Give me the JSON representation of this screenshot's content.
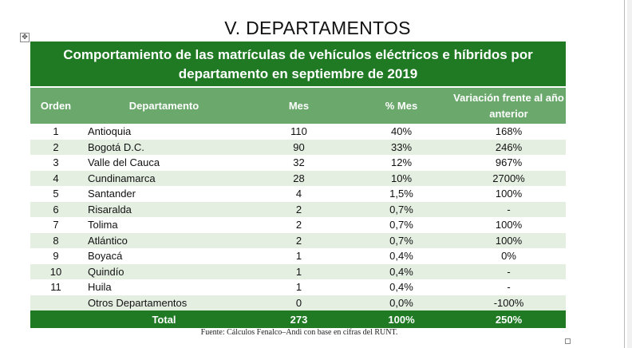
{
  "section_title": "V. DEPARTAMENTOS",
  "table": {
    "title": "Comportamiento  de las matrículas  de vehículos eléctricos e híbridos por departamento  en septiembre de 2019",
    "headers": {
      "orden": "Orden",
      "departamento": "Departamento",
      "mes": "Mes",
      "pct_mes": "% Mes",
      "variacion": "Variación frente al año anterior"
    },
    "rows": [
      {
        "orden": "1",
        "departamento": "Antioquia",
        "mes": "110",
        "pct_mes": "40%",
        "variacion": "168%"
      },
      {
        "orden": "2",
        "departamento": "Bogotá D.C.",
        "mes": "90",
        "pct_mes": "33%",
        "variacion": "246%"
      },
      {
        "orden": "3",
        "departamento": "Valle del Cauca",
        "mes": "32",
        "pct_mes": "12%",
        "variacion": "967%"
      },
      {
        "orden": "4",
        "departamento": "Cundinamarca",
        "mes": "28",
        "pct_mes": "10%",
        "variacion": "2700%"
      },
      {
        "orden": "5",
        "departamento": "Santander",
        "mes": "4",
        "pct_mes": "1,5%",
        "variacion": "100%"
      },
      {
        "orden": "6",
        "departamento": "Risaralda",
        "mes": "2",
        "pct_mes": "0,7%",
        "variacion": "-"
      },
      {
        "orden": "7",
        "departamento": "Tolima",
        "mes": "2",
        "pct_mes": "0,7%",
        "variacion": "100%"
      },
      {
        "orden": "8",
        "departamento": "Atlántico",
        "mes": "2",
        "pct_mes": "0,7%",
        "variacion": "100%"
      },
      {
        "orden": "9",
        "departamento": "Boyacá",
        "mes": "1",
        "pct_mes": "0,4%",
        "variacion": "0%"
      },
      {
        "orden": "10",
        "departamento": "Quindío",
        "mes": "1",
        "pct_mes": "0,4%",
        "variacion": "-"
      },
      {
        "orden": "11",
        "departamento": "Huila",
        "mes": "1",
        "pct_mes": "0,4%",
        "variacion": "-"
      },
      {
        "orden": "",
        "departamento": "Otros Departamentos",
        "mes": "0",
        "pct_mes": "0,0%",
        "variacion": "-100%"
      }
    ],
    "total": {
      "label": "Total",
      "mes": "273",
      "pct_mes": "100%",
      "variacion": "250%"
    }
  },
  "source_note": "Fuente: Cálculos Fenalco–Andi con base en cifras del RUNT.",
  "colors": {
    "title_bg": "#1f7a23",
    "header_bg": "#6aa86c",
    "band_bg": "#e4efe2"
  },
  "icons": {
    "move_handle": "move-handle-icon"
  }
}
